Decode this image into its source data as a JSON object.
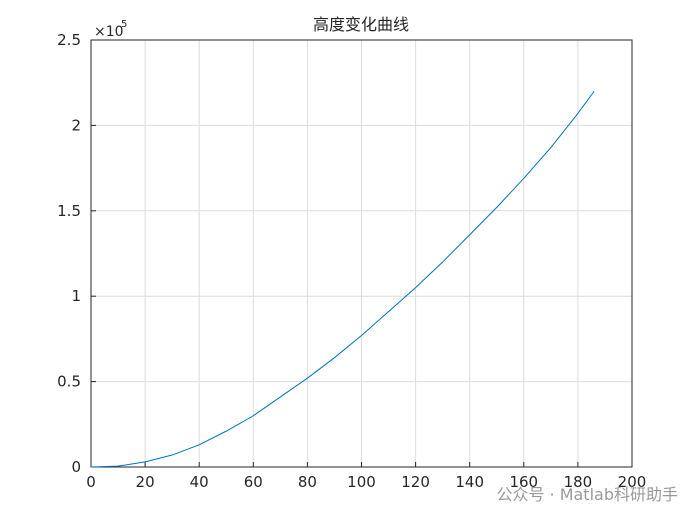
{
  "chart_data": {
    "type": "line",
    "title": "高度变化曲线",
    "x": [
      0,
      10,
      20,
      30,
      40,
      50,
      60,
      70,
      80,
      90,
      100,
      110,
      120,
      130,
      140,
      150,
      160,
      170,
      180,
      186
    ],
    "series": [
      {
        "color": "#0072bd",
        "values": [
          0,
          0.005,
          0.03,
          0.07,
          0.13,
          0.21,
          0.3,
          0.41,
          0.52,
          0.64,
          0.77,
          0.91,
          1.05,
          1.2,
          1.36,
          1.52,
          1.69,
          1.87,
          2.07,
          2.2
        ]
      }
    ],
    "xlim": [
      0,
      200
    ],
    "xticks": [
      0,
      20,
      40,
      60,
      80,
      100,
      120,
      140,
      160,
      180,
      200
    ],
    "ylim": [
      0,
      2.5
    ],
    "yticks": [
      0,
      0.5,
      1,
      1.5,
      2,
      2.5
    ],
    "y_multiplier": {
      "base": "×10",
      "exponent": "5"
    },
    "grid": true
  },
  "watermark": "公众号 · Matlab科研助手"
}
